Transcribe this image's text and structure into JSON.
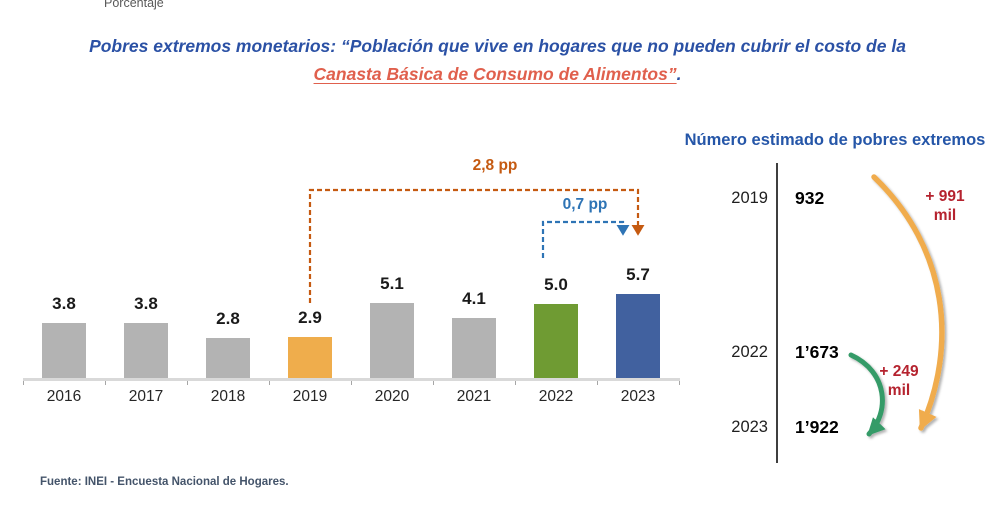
{
  "page": {
    "unit_label": "Porcentaje",
    "title_line1": "Pobres extremos monetarios: “Población que vive en hogares que no pueden cubrir el costo de la",
    "title_line2": "Canasta Básica de Consumo de Alimentos”",
    "title_line2_suffix": ".",
    "source": "Fuente: INEI - Encuesta Nacional de Hogares.",
    "colors": {
      "title_blue": "#2B51A5",
      "title_red": "#E0604D",
      "right_title_blue": "#2556A8",
      "delta_red": "#B5232F",
      "source_gray": "#44546A"
    }
  },
  "chart_data": [
    {
      "type": "bar",
      "title": "",
      "ylabel": "Porcentaje",
      "categories": [
        "2016",
        "2017",
        "2018",
        "2019",
        "2020",
        "2021",
        "2022",
        "2023"
      ],
      "values": [
        3.8,
        3.8,
        2.8,
        2.9,
        5.1,
        4.1,
        5.0,
        5.7
      ],
      "value_labels": [
        "3.8",
        "3.8",
        "2.8",
        "2.9",
        "5.1",
        "4.1",
        "5.0",
        "5.7"
      ],
      "bar_colors": [
        "#B3B3B3",
        "#B3B3B3",
        "#B3B3B3",
        "#EFAD4C",
        "#B3B3B3",
        "#B3B3B3",
        "#6F9B33",
        "#41619F"
      ],
      "ylim": [
        0,
        6
      ],
      "grid": false,
      "legend": false,
      "annotations": [
        {
          "label": "2,8 pp",
          "from": "2019",
          "to": "2023",
          "delta": 2.8,
          "color": "#C55A11"
        },
        {
          "label": "0,7 pp",
          "from": "2022",
          "to": "2023",
          "delta": 0.7,
          "color": "#2E74B5"
        }
      ]
    },
    {
      "type": "table",
      "title": "Número estimado de pobres extremos",
      "rows": [
        {
          "year": "2019",
          "value": "932"
        },
        {
          "year": "2022",
          "value": "1’673"
        },
        {
          "year": "2023",
          "value": "1’922"
        }
      ],
      "arrows": [
        {
          "label_line1": "+ 991",
          "label_line2": "mil",
          "from": "2019",
          "to": "2023",
          "color": "#F0AC4E"
        },
        {
          "label_line1": "+ 249",
          "label_line2": "mil",
          "from": "2022",
          "to": "2023",
          "color": "#359B68"
        }
      ]
    }
  ]
}
